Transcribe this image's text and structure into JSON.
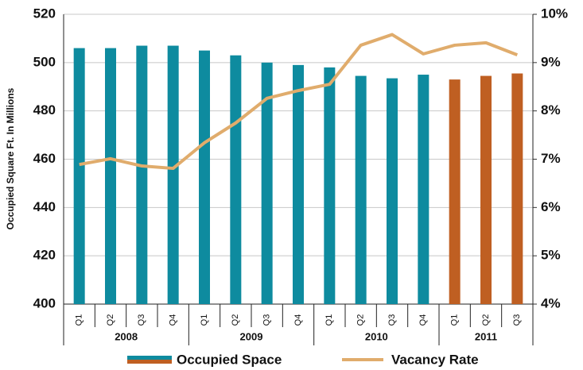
{
  "chart_data": {
    "type": "bar-line",
    "ylabel": "Occupied Square Ft. In Millions",
    "categories": [
      "Q1",
      "Q2",
      "Q3",
      "Q4",
      "Q1",
      "Q2",
      "Q3",
      "Q4",
      "Q1",
      "Q2",
      "Q3",
      "Q4",
      "Q1",
      "Q2",
      "Q3"
    ],
    "groups": [
      {
        "label": "2008",
        "size": 4
      },
      {
        "label": "2009",
        "size": 4
      },
      {
        "label": "2010",
        "size": 4
      },
      {
        "label": "2011",
        "size": 3
      }
    ],
    "series": [
      {
        "name": "Occupied Space",
        "type": "bar",
        "colors": [
          "#0e8b9f",
          "#0e8b9f",
          "#0e8b9f",
          "#0e8b9f",
          "#0e8b9f",
          "#0e8b9f",
          "#0e8b9f",
          "#0e8b9f",
          "#0e8b9f",
          "#0e8b9f",
          "#0e8b9f",
          "#0e8b9f",
          "#bf5f22",
          "#bf5f22",
          "#bf5f22"
        ],
        "values": [
          506,
          506,
          507,
          507,
          505,
          503,
          500,
          499,
          498,
          494.5,
          493.5,
          495,
          493,
          494.5,
          495.5
        ]
      },
      {
        "name": "Vacancy Rate",
        "type": "line",
        "axis": "y2",
        "color": "#e0ac6c",
        "values": [
          6.89,
          7.01,
          6.86,
          6.81,
          7.34,
          7.75,
          8.26,
          8.42,
          8.55,
          9.36,
          9.58,
          9.18,
          9.36,
          9.41,
          9.16
        ]
      }
    ],
    "ylim": [
      400,
      520
    ],
    "yticks": [
      400,
      420,
      440,
      460,
      480,
      500,
      520
    ],
    "y2lim": [
      4,
      10
    ],
    "y2ticks": [
      {
        "value": 4,
        "label": "4%"
      },
      {
        "value": 5,
        "label": "5%"
      },
      {
        "value": 6,
        "label": "6%"
      },
      {
        "value": 7,
        "label": "7%"
      },
      {
        "value": 8,
        "label": "8%"
      },
      {
        "value": 9,
        "label": "9%"
      },
      {
        "value": 10,
        "label": "10%"
      }
    ],
    "grid": true
  }
}
